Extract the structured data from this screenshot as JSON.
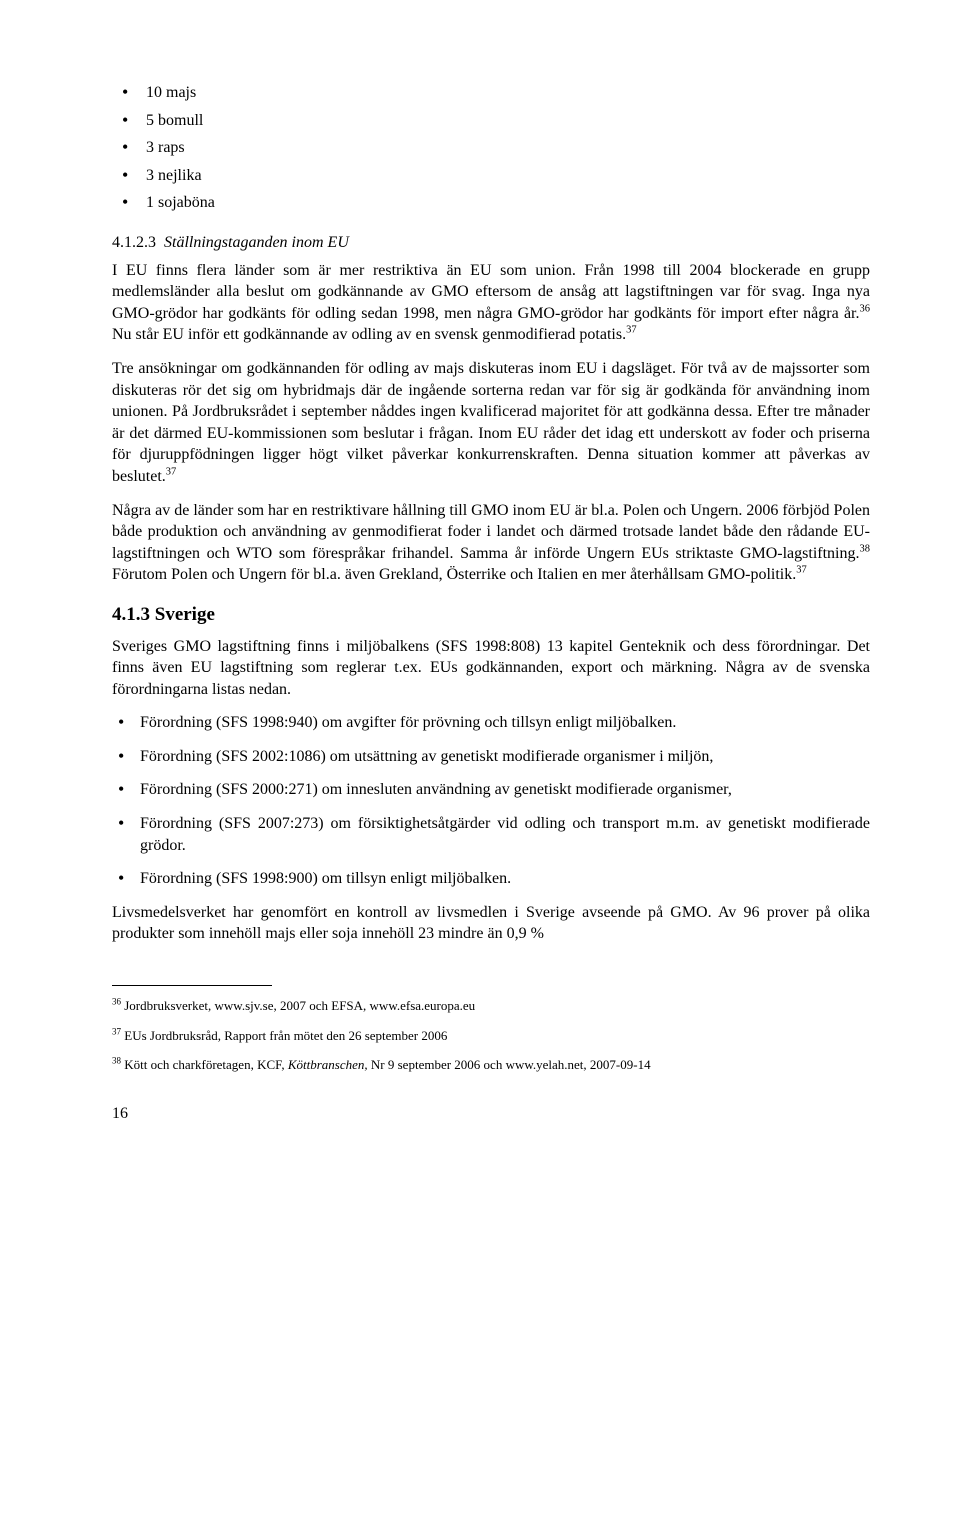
{
  "topList": {
    "items": [
      "10 majs",
      "5 bomull",
      "3 raps",
      "3 nejlika",
      "1 sojaböna"
    ]
  },
  "section423": {
    "heading_num": "4.1.2.3",
    "heading_text": "Ställningstaganden inom EU",
    "p1_a": "I EU finns flera länder som är mer restriktiva än EU som union. Från 1998 till 2004 blockerade en grupp medlemsländer alla beslut om godkännande av GMO eftersom de ansåg att lagstiftningen var för svag. Inga nya GMO-grödor har godkänts för odling sedan 1998, men några GMO-grödor har godkänts för import efter några år.",
    "p1_sup1": "36",
    "p1_b": " Nu står EU inför ett godkännande av odling av en svensk genmodifierad potatis.",
    "p1_sup2": "37",
    "p2_a": "Tre ansökningar om godkännanden för odling av majs diskuteras inom EU i dagsläget. För två av de majssorter som diskuteras rör det sig om hybridmajs där de ingående sorterna redan var för sig är godkända för användning inom unionen. På Jordbruksrådet i september nåddes ingen kvalificerad majoritet för att godkänna dessa. Efter tre månader är det därmed EU-kommissionen som beslutar i frågan. Inom EU råder det idag ett underskott av foder och priserna för djuruppfödningen ligger högt vilket påverkar konkurrenskraften. Denna situation kommer att påverkas av beslutet.",
    "p2_sup": "37",
    "p3_a": "Några av de länder som har en restriktivare hållning till GMO inom EU är bl.a. Polen och Ungern. 2006 förbjöd Polen både produktion och användning av genmodifierat foder i landet och därmed trotsade landet både den rådande EU-lagstiftningen och WTO som förespråkar frihandel. Samma år införde Ungern EUs striktaste GMO-lagstiftning.",
    "p3_sup1": "38",
    "p3_b": " Förutom Polen och Ungern för bl.a. även Grekland, Österrike och Italien en mer återhållsam GMO-politik.",
    "p3_sup2": "37"
  },
  "section413": {
    "heading": "4.1.3  Sverige",
    "p1": "Sveriges GMO lagstiftning finns i miljöbalkens (SFS 1998:808) 13 kapitel Genteknik och dess förordningar. Det finns även EU lagstiftning som reglerar t.ex. EUs godkännanden, export och märkning. Några av de svenska förordningarna listas nedan.",
    "bullets": [
      "Förordning (SFS 1998:940) om avgifter för prövning och tillsyn enligt miljöbalken.",
      "Förordning (SFS 2002:1086) om utsättning av genetiskt modifierade organismer i miljön,",
      "Förordning (SFS 2000:271) om innesluten användning av genetiskt modifierade organismer,",
      "Förordning (SFS 2007:273) om försiktighetsåtgärder vid odling och transport m.m. av genetiskt modifierade grödor.",
      "Förordning (SFS 1998:900) om tillsyn enligt miljöbalken."
    ],
    "p2": "Livsmedelsverket har genomfört en kontroll av livsmedlen i Sverige avseende på GMO. Av 96 prover på olika produkter som innehöll majs eller soja innehöll 23 mindre än 0,9 %"
  },
  "footnotes": {
    "fn36": {
      "sup": "36",
      "text": " Jordbruksverket, www.sjv.se, 2007 och EFSA, www.efsa.europa.eu"
    },
    "fn37": {
      "sup": "37",
      "text": " EUs Jordbruksråd, Rapport från mötet den 26 september 2006"
    },
    "fn38": {
      "sup": "38",
      "text_a": " Kött och charkföretagen, KCF, ",
      "italic": "Köttbranschen,",
      "text_b": " Nr 9 september 2006 och www.yelah.net, 2007-09-14"
    }
  },
  "pageNumber": "16"
}
